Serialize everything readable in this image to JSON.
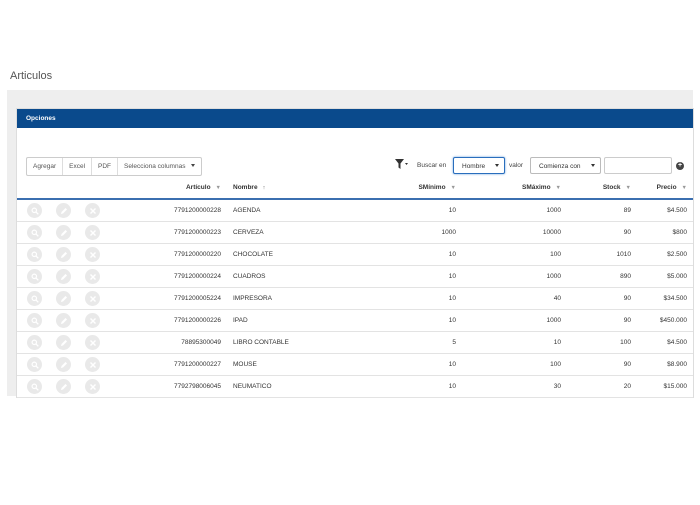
{
  "page": {
    "title": "Articulos"
  },
  "panel": {
    "title": "Opciones"
  },
  "toolbar": {
    "buttons": [
      "Agregar",
      "Excel",
      "PDF",
      "Selecciona columnas"
    ],
    "search_in_label": "Buscar en",
    "search_field": "Hombre",
    "value_label": "valor",
    "match_mode": "Comienza con",
    "search_value": ""
  },
  "table": {
    "headers": [
      "Artículo",
      "Nombre",
      "SMínimo",
      "SMáximo",
      "Stock",
      "Precio"
    ],
    "rows": [
      [
        "7791200000228",
        "AGENDA",
        "10",
        "1000",
        "89",
        "$4.500"
      ],
      [
        "7791200000223",
        "CERVEZA",
        "1000",
        "10000",
        "90",
        "$800"
      ],
      [
        "7791200000220",
        "CHOCOLATE",
        "10",
        "100",
        "1010",
        "$2.500"
      ],
      [
        "7791200000224",
        "CUADROS",
        "10",
        "1000",
        "890",
        "$5.000"
      ],
      [
        "7791200005224",
        "IMPRESORA",
        "10",
        "40",
        "90",
        "$34.500"
      ],
      [
        "7791200000226",
        "IPAD",
        "10",
        "1000",
        "90",
        "$450.000"
      ],
      [
        "78895300049",
        "LIBRO CONTABLE",
        "5",
        "10",
        "100",
        "$4.500"
      ],
      [
        "7791200000227",
        "MOUSE",
        "10",
        "100",
        "90",
        "$8.900"
      ],
      [
        "7792798006045",
        "NEUMATICO",
        "10",
        "30",
        "20",
        "$15.000"
      ]
    ]
  },
  "icons": {
    "row_actions": [
      "view-icon",
      "edit-icon",
      "delete-icon"
    ],
    "filter": "filter-funnel-icon",
    "add": "plus-circle-icon"
  },
  "colors": {
    "header_bar": "#0a4a8c",
    "header_rule": "#3b6fb0"
  }
}
